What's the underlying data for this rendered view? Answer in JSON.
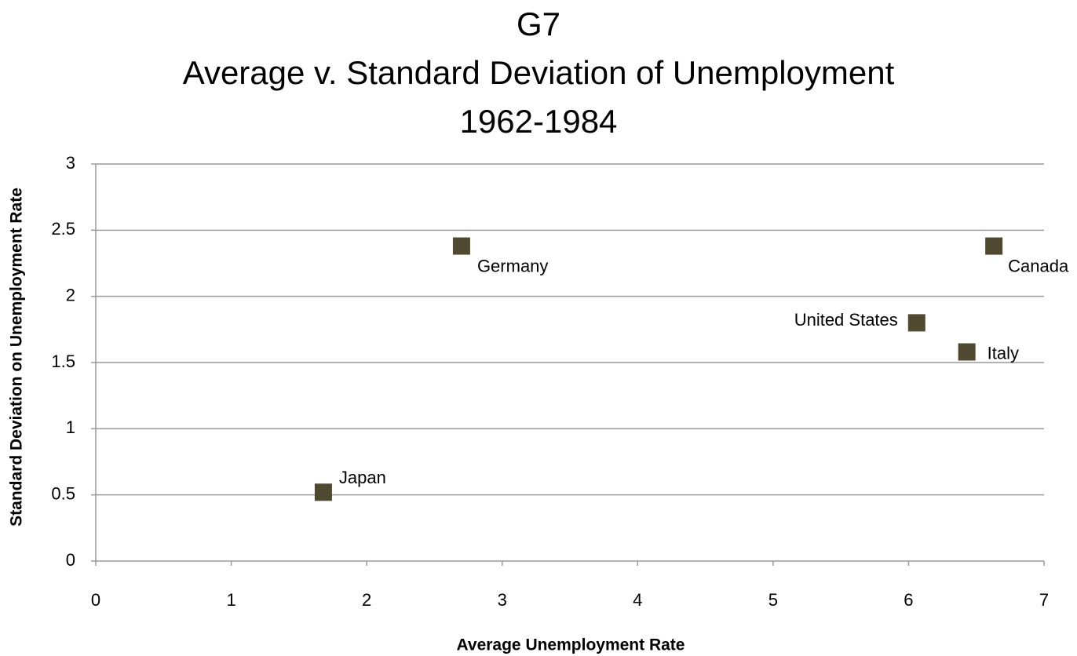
{
  "chart_data": {
    "type": "scatter",
    "title": [
      "G7",
      "Average v. Standard Deviation of Unemployment",
      "1962-1984"
    ],
    "x_label": "Average Unemployment Rate",
    "y_label": "Standard Deviation  on Unemployment Rate",
    "labels": [
      "Germany",
      "Canada",
      "United States",
      "Italy",
      "Japan"
    ],
    "x": [
      2.7,
      6.63,
      6.06,
      6.43,
      1.68
    ],
    "y": [
      2.38,
      2.38,
      1.8,
      1.58,
      0.52
    ],
    "color": "#4f4a2f",
    "xlim": [
      0,
      7
    ],
    "xticks": [
      0,
      1,
      2,
      3,
      4,
      5,
      6,
      7
    ],
    "ylim": [
      0,
      3
    ],
    "yticks": [
      0,
      0.5,
      1,
      1.5,
      2,
      2.5,
      3
    ],
    "grid": true
  }
}
